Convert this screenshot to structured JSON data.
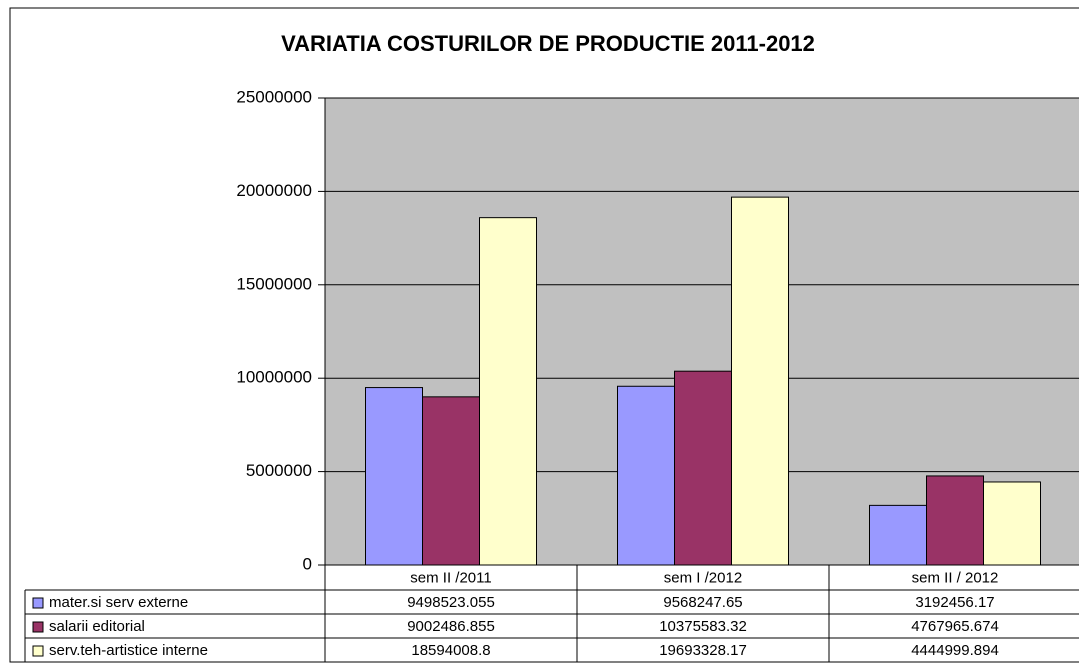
{
  "chart_data": {
    "type": "bar",
    "title": "VARIATIA COSTURILOR DE PRODUCTIE 2011-2012",
    "categories": [
      "sem II /2011",
      "sem I /2012",
      "sem II / 2012"
    ],
    "series": [
      {
        "name": "mater.si serv externe",
        "color": "#9999ff",
        "values": [
          9498523.055,
          9568247.65,
          3192456.17
        ]
      },
      {
        "name": "salarii editorial",
        "color": "#993366",
        "values": [
          9002486.855,
          10375583.32,
          4767965.674
        ]
      },
      {
        "name": "serv.teh-artistice interne",
        "color": "#ffffcc",
        "values": [
          18594008.8,
          19693328.17,
          4444999.894
        ]
      }
    ],
    "ylim": [
      0,
      25000000
    ],
    "yticks": [
      0,
      5000000,
      10000000,
      15000000,
      20000000,
      25000000
    ],
    "grid": true,
    "plot_background": "#c0c0c0"
  }
}
